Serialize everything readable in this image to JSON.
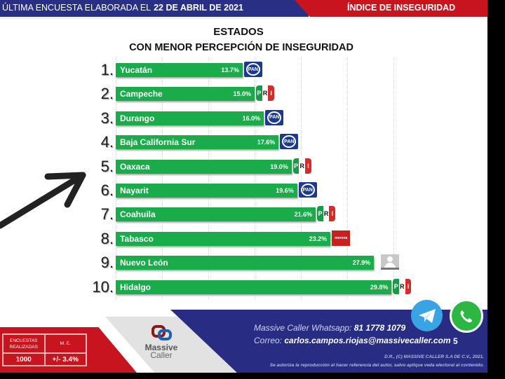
{
  "header": {
    "survey_label": "ÚLTIMA ENCUESTA ELABORADA EL",
    "survey_date": "22 DE ABRIL DE 2021",
    "section": "ÍNDICE DE INSEGURIDAD",
    "colors": {
      "blue": "#2a2f86",
      "red": "#c8141e"
    }
  },
  "title": {
    "line1": "ESTADOS",
    "line2": "CON MENOR PERCEPCIÓN DE INSEGURIDAD"
  },
  "chart_data": {
    "type": "bar",
    "orientation": "horizontal",
    "title": "ESTADOS CON MENOR PERCEPCIÓN DE INSEGURIDAD",
    "xlabel": "",
    "ylabel": "",
    "bar_color": "#1aab4b",
    "grid": true,
    "categories": [
      "Yucatán",
      "Campeche",
      "Durango",
      "Baja California Sur",
      "Oaxaca",
      "Nayarit",
      "Coahuila",
      "Tabasco",
      "Nuevo León",
      "Hidalgo"
    ],
    "values": [
      13.7,
      15.0,
      16.0,
      17.6,
      19.0,
      19.6,
      21.6,
      23.2,
      27.9,
      29.8
    ],
    "value_labels": [
      "13.7%",
      "15.0%",
      "16.0%",
      "17.6%",
      "19.0%",
      "19.6%",
      "21.6%",
      "23.2%",
      "27.9%",
      "29.8%"
    ],
    "ranks": [
      "1.",
      "2.",
      "3.",
      "4.",
      "5.",
      "6.",
      "7.",
      "8.",
      "9.",
      "10."
    ],
    "parties": [
      "PAN",
      "PRI",
      "PAN",
      "PAN",
      "PRI",
      "PAN",
      "PRI",
      "MORENA",
      "INDEPENDIENTE",
      "PRI"
    ]
  },
  "logos": {
    "pan": "PAN",
    "pri": {
      "p": "P",
      "r": "R",
      "i": "I"
    },
    "morena": "morena"
  },
  "annotation": {
    "arrow_points_to": "5. Oaxaca"
  },
  "footer": {
    "stats": {
      "col1_header": "ENCUESTAS REALIZADAS",
      "col2_header": "M. E.",
      "col1_value": "1000",
      "col2_value": "+/- 3.4%"
    },
    "brand": {
      "line1": "Massive",
      "line2": "Caller"
    },
    "whatsapp_label": "Massive Caller Whatsapp:",
    "whatsapp_number": "81 1778 1079",
    "email_label": "Correo:",
    "email": "carlos.campos.riojas@massivecaller.com",
    "page": "5",
    "legal1": "D.R., (C) MASSIVE CALLER S.A DE C.V., 2021.",
    "legal2": "Se autoriza la reproducción al hacer referencia del autor, salvo aplique veda electoral al contenido."
  }
}
